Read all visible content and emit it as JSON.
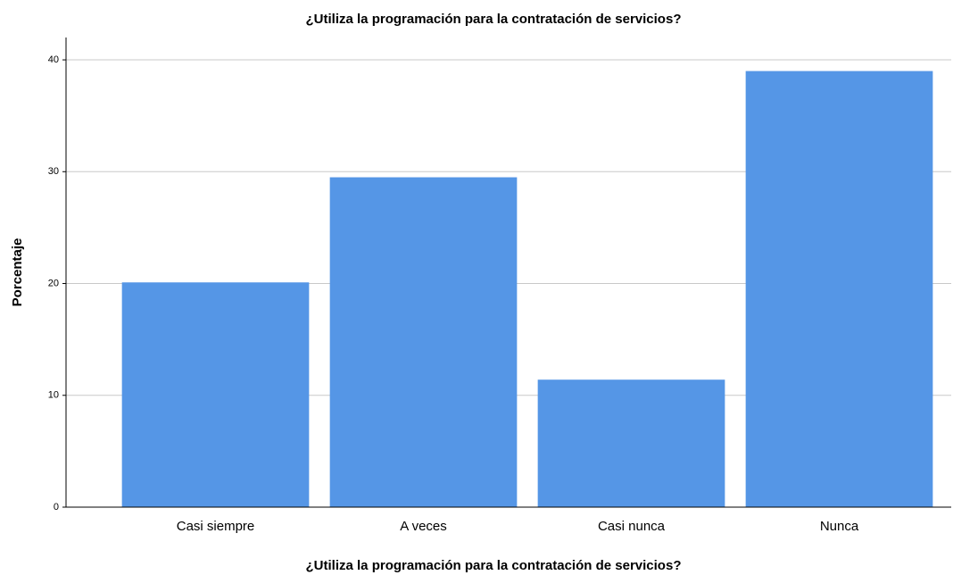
{
  "chart_data": {
    "type": "bar",
    "title": "¿Utiliza la programación para la contratación de servicios?",
    "x_label": "¿Utiliza la programación para la contratación de servicios?",
    "y_label": "Porcentaje",
    "categories": [
      "Casi siempre",
      "A veces",
      "Casi nunca",
      "Nunca"
    ],
    "values": [
      20.1,
      29.5,
      11.4,
      39.0
    ],
    "color": "#5596e6",
    "ylim": [
      0,
      42
    ],
    "yticks": [
      0,
      10,
      20,
      30,
      40
    ],
    "grid": true
  }
}
